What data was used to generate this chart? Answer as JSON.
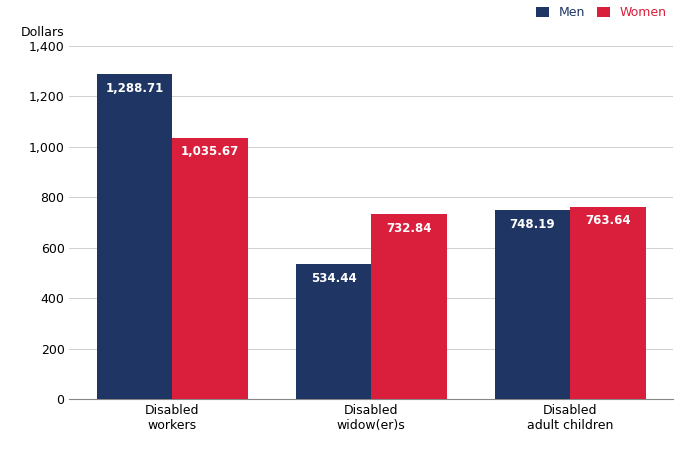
{
  "categories": [
    "Disabled\nworkers",
    "Disabled\nwidow(er)s",
    "Disabled\nadult children"
  ],
  "men_values": [
    1288.71,
    534.44,
    748.19
  ],
  "women_values": [
    1035.67,
    732.84,
    763.64
  ],
  "men_color": "#1f3564",
  "women_color": "#d91f3c",
  "men_label": "Men",
  "women_label": "Women",
  "men_text_color": "#1f3564",
  "women_text_color": "#d91f3c",
  "ylabel": "Dollars",
  "ylim": [
    0,
    1400
  ],
  "yticks": [
    0,
    200,
    400,
    600,
    800,
    1000,
    1200,
    1400
  ],
  "bar_width": 0.38,
  "label_fontsize": 8.5,
  "tick_fontsize": 9,
  "ylabel_fontsize": 9,
  "legend_fontsize": 9
}
